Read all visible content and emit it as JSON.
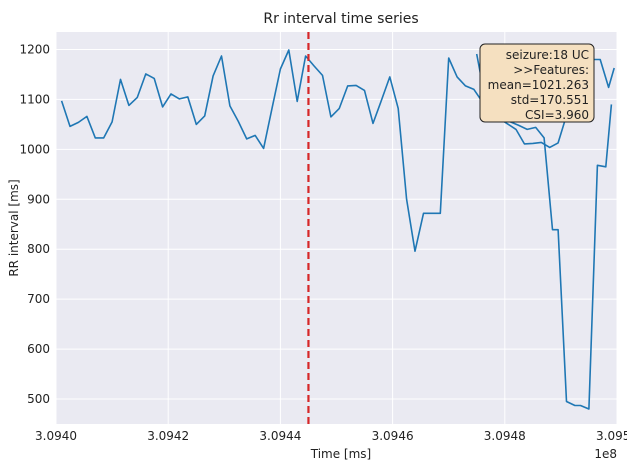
{
  "chart_data": {
    "type": "line",
    "title": "Rr interval time series",
    "xlabel": "Time [ms]",
    "ylabel": "RR interval [ms]",
    "x_offset_label": "1e8",
    "xlim": [
      3.094,
      3.095
    ],
    "ylim": [
      450,
      1235
    ],
    "x_ticks": [
      3.094,
      3.0942,
      3.0944,
      3.0946,
      3.0948,
      3.095
    ],
    "x_tick_labels": [
      "3.0940",
      "3.0942",
      "3.0944",
      "3.0946",
      "3.0948",
      "3.0950"
    ],
    "y_ticks": [
      500,
      600,
      700,
      800,
      900,
      1000,
      1100,
      1200
    ],
    "y_tick_labels": [
      "500",
      "600",
      "700",
      "800",
      "900",
      "1000",
      "1100",
      "1200"
    ],
    "grid": true,
    "series": [
      {
        "color": "#1f77b4",
        "x": [
          3.09401,
          3.094025,
          3.09404,
          3.094055,
          3.09407,
          3.094085,
          3.0941,
          3.094115,
          3.09413,
          3.094145,
          3.09416,
          3.094175,
          3.09419,
          3.094205,
          3.09422,
          3.094235,
          3.09425,
          3.094265,
          3.09428,
          3.094295,
          3.09431,
          3.094325,
          3.09434,
          3.094355,
          3.09437,
          3.094385,
          3.0944,
          3.094415,
          3.09443,
          3.094445,
          3.09446,
          3.094475,
          3.09449,
          3.094505,
          3.09452,
          3.094535,
          3.09455,
          3.094565,
          3.09458,
          3.094595,
          3.09461,
          3.094625,
          3.09464,
          3.094655,
          3.09467,
          3.094685,
          3.0947,
          3.094715,
          3.09473,
          3.094745,
          3.09476,
          3.094775,
          3.09479,
          3.094805,
          3.09482,
          3.094835,
          3.09485,
          3.094865,
          3.09488,
          3.094895,
          3.09491,
          3.094925,
          3.09494,
          3.094955,
          3.09497,
          3.094985,
          3.094995
        ],
        "y": [
          1097,
          1046,
          1054,
          1066,
          1023,
          1023,
          1055,
          1140,
          1088,
          1104,
          1151,
          1142,
          1085,
          1111,
          1101,
          1105,
          1050,
          1067,
          1147,
          1187,
          1087,
          1056,
          1021,
          1028,
          1002,
          1082,
          1161,
          1199,
          1096,
          1187,
          1167,
          1148,
          1065,
          1082,
          1127,
          1128,
          1118,
          1052,
          1098,
          1145,
          1082,
          900,
          796,
          872,
          872,
          872,
          1183,
          1145,
          1127,
          1120,
          1095,
          1076,
          1062,
          1051,
          1040,
          1011,
          1012,
          1014,
          1004,
          1013,
          1068,
          1147,
          1190,
          1180,
          1180,
          1124,
          1163
        ]
      }
    ],
    "series_tail": [
      {
        "x": [
          3.09475,
          3.094765,
          3.09478,
          3.094795,
          3.09481,
          3.094825,
          3.09484,
          3.094855,
          3.09487,
          3.094885,
          3.094895,
          3.09491,
          3.094925,
          3.094935,
          3.09495,
          3.094965,
          3.09498,
          3.09499
        ],
        "y": [
          1191,
          1101,
          1081,
          1062,
          1055,
          1048,
          1040,
          1044,
          1023,
          839,
          839,
          495,
          487,
          487,
          480,
          968,
          965,
          1090
        ]
      }
    ],
    "vline": {
      "x": 3.09445,
      "color": "#d62728",
      "style": "dashed"
    },
    "annotation": {
      "lines": [
        "seizure:18 UC",
        ">>Features:",
        "mean=1021.263",
        "std=170.551",
        "CSI=3.960"
      ],
      "position": "top-right",
      "box_color": "#f5e0c0"
    }
  }
}
